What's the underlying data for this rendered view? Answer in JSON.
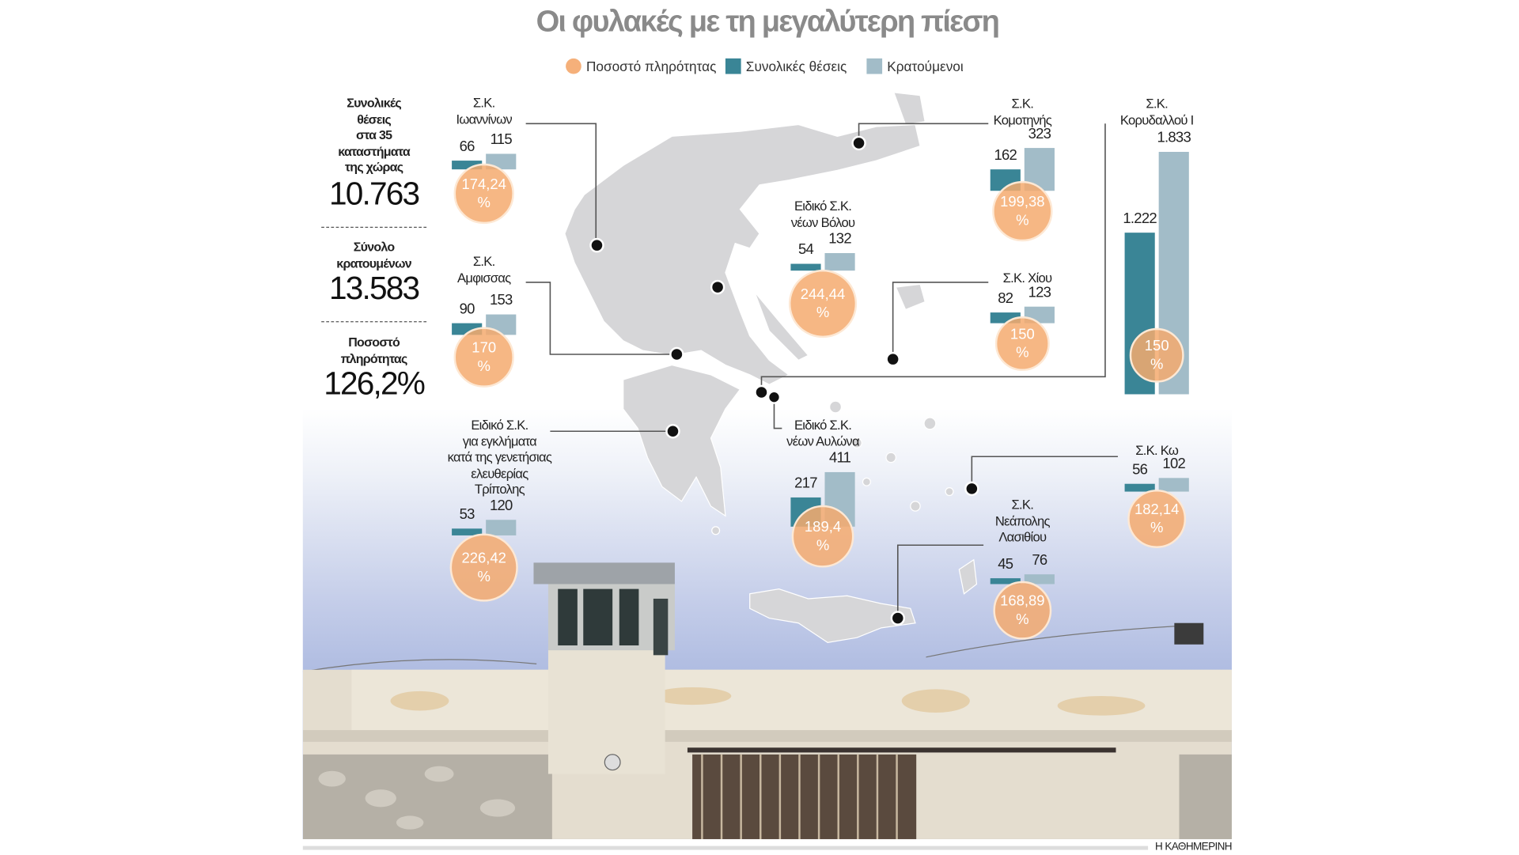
{
  "title": "Οι φυλακές με τη μεγαλύτερη πίεση",
  "legend": [
    {
      "label": "Ποσοστό πληρότητας",
      "color": "#f5b07a",
      "shape": "circle"
    },
    {
      "label": "Συνολικές θέσεις",
      "color": "#3a8596",
      "shape": "square"
    },
    {
      "label": "Κρατούμενοι",
      "color": "#a2bcc8",
      "shape": "square"
    }
  ],
  "summary": {
    "capacity_label": "Συνολικές θέσεις στα 35 καταστήματα της χώρας",
    "capacity_lines": [
      "Συνολικές",
      "θέσεις",
      "στα 35",
      "καταστήματα",
      "της χώρας"
    ],
    "capacity_value": "10.763",
    "inmates_lines": [
      "Σύνολο",
      "κρατουμένων"
    ],
    "inmates_value": "13.583",
    "occupancy_lines": [
      "Ποσοστό",
      "πληρότητας"
    ],
    "occupancy_value": "126,2%"
  },
  "chart_data": {
    "type": "bar",
    "title": "Οι φυλακές με τη μεγαλύτερη πίεση",
    "series_names": [
      "Συνολικές θέσεις",
      "Κρατούμενοι",
      "Ποσοστό πληρότητας"
    ],
    "prisons": [
      {
        "name_lines": [
          "Σ.Κ.",
          "Ιωαννίνων"
        ],
        "capacity": 66,
        "capacity_label": "66",
        "inmates": 115,
        "inmates_label": "115",
        "occupancy": "174,24"
      },
      {
        "name_lines": [
          "Σ.Κ.",
          "Αμφισσας"
        ],
        "capacity": 90,
        "capacity_label": "90",
        "inmates": 153,
        "inmates_label": "153",
        "occupancy": "170"
      },
      {
        "name_lines": [
          "Ειδικό Σ.Κ.",
          "για εγκλήματα",
          "κατά της γενετήσιας",
          "ελευθερίας",
          "Τρίπολης"
        ],
        "capacity": 53,
        "capacity_label": "53",
        "inmates": 120,
        "inmates_label": "120",
        "occupancy": "226,42"
      },
      {
        "name_lines": [
          "Ειδικό Σ.Κ.",
          "νέων Βόλου"
        ],
        "capacity": 54,
        "capacity_label": "54",
        "inmates": 132,
        "inmates_label": "132",
        "occupancy": "244,44"
      },
      {
        "name_lines": [
          "Σ.Κ.",
          "Κομοτηνής"
        ],
        "capacity": 162,
        "capacity_label": "162",
        "inmates": 323,
        "inmates_label": "323",
        "occupancy": "199,38"
      },
      {
        "name_lines": [
          "Σ.Κ. Χίου"
        ],
        "capacity": 82,
        "capacity_label": "82",
        "inmates": 123,
        "inmates_label": "123",
        "occupancy": "150"
      },
      {
        "name_lines": [
          "Σ.Κ.",
          "Κορυδαλλού Ι"
        ],
        "capacity": 1222,
        "capacity_label": "1.222",
        "inmates": 1833,
        "inmates_label": "1.833",
        "occupancy": "150"
      },
      {
        "name_lines": [
          "Ειδικό Σ.Κ.",
          "νέων Αυλώνα"
        ],
        "capacity": 217,
        "capacity_label": "217",
        "inmates": 411,
        "inmates_label": "411",
        "occupancy": "189,4"
      },
      {
        "name_lines": [
          "Σ.Κ. Κω"
        ],
        "capacity": 56,
        "capacity_label": "56",
        "inmates": 102,
        "inmates_label": "102",
        "occupancy": "182,14"
      },
      {
        "name_lines": [
          "Σ.Κ.",
          "Νεάπολης",
          "Λασιθίου"
        ],
        "capacity": 45,
        "capacity_label": "45",
        "inmates": 76,
        "inmates_label": "76",
        "occupancy": "168,89"
      }
    ],
    "percent_sign": "%"
  },
  "colors": {
    "capacity": "#3a8596",
    "inmates": "#a2bcc8",
    "occupancy": "#f5b07a",
    "title": "#8a8a8a"
  },
  "credit": "Η ΚΑΘΗΜΕΡΙΝΗ"
}
